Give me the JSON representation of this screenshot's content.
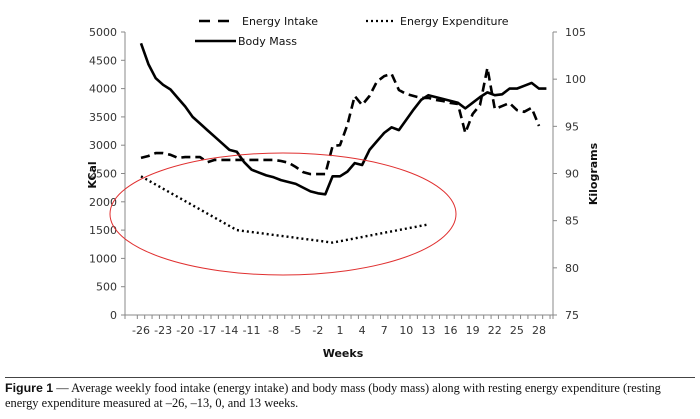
{
  "chart_data": {
    "type": "line",
    "title": "",
    "xlabel": "Weeks",
    "ylabel": "KCal",
    "y2label": "Kilograms",
    "ylim": [
      0,
      5000
    ],
    "y2lim": [
      75,
      105
    ],
    "yticks": [
      "0",
      "500",
      "1000",
      "1500",
      "2000",
      "2500",
      "3000",
      "3500",
      "4000",
      "4500",
      "5000"
    ],
    "y2ticks": [
      "75",
      "80",
      "85",
      "90",
      "95",
      "100",
      "105"
    ],
    "x": [
      -26,
      -25,
      -24,
      -23,
      -22,
      -21,
      -20,
      -19,
      -18,
      -17,
      -16,
      -15,
      -14,
      -13,
      -12,
      -11,
      -10,
      -9,
      -8,
      -7,
      -6,
      -5,
      -4,
      -3,
      -2,
      -1,
      0,
      1,
      2,
      3,
      4,
      5,
      6,
      7,
      8,
      9,
      10,
      11,
      12,
      13,
      14,
      15,
      16,
      17,
      18,
      19,
      20,
      21,
      22,
      23,
      24,
      25,
      26,
      27,
      28,
      29
    ],
    "xticks": [
      "-26",
      "-23",
      "-20",
      "-17",
      "-14",
      "-11",
      "-8",
      "-5",
      "-2",
      "1",
      "4",
      "7",
      "10",
      "13",
      "16",
      "19",
      "22",
      "25",
      "28"
    ],
    "grid": false,
    "legend_position": "top",
    "series": [
      {
        "name": "Energy Intake",
        "axis": "left",
        "style": "dashed",
        "x": [
          -26,
          -25,
          -24,
          -23,
          -22,
          -21,
          -20,
          -19,
          -18,
          -17,
          -16,
          -15,
          -14,
          -13,
          -12,
          -11,
          -10,
          -9,
          -8,
          -7,
          -6,
          -5,
          -4,
          -3,
          -2,
          -1,
          0,
          1,
          2,
          3,
          4,
          5,
          6,
          7,
          8,
          9,
          10,
          11,
          12,
          13,
          14,
          15,
          16,
          17,
          18,
          19,
          20,
          21,
          22,
          23,
          24,
          25,
          26,
          27,
          28
        ],
        "values": [
          2775,
          2810,
          2860,
          2860,
          2830,
          2775,
          2790,
          2790,
          2790,
          2700,
          2740,
          2740,
          2740,
          2740,
          2740,
          2740,
          2740,
          2740,
          2740,
          2720,
          2690,
          2615,
          2525,
          2490,
          2490,
          2490,
          2985,
          3000,
          3360,
          3870,
          3710,
          3870,
          4120,
          4220,
          4260,
          3975,
          3905,
          3870,
          3835,
          3835,
          3800,
          3780,
          3745,
          3730,
          3215,
          3550,
          3710,
          4365,
          3640,
          3690,
          3745,
          3620,
          3590,
          3660,
          3340
        ]
      },
      {
        "name": "Energy Expenditure",
        "axis": "left",
        "style": "dotted",
        "x": [
          -26,
          -13,
          0,
          13
        ],
        "values": [
          2450,
          1500,
          1280,
          1600
        ]
      },
      {
        "name": "Body Mass",
        "axis": "right",
        "style": "solid",
        "x": [
          -26,
          -25,
          -24,
          -23,
          -22,
          -21,
          -20,
          -19,
          -18,
          -17,
          -16,
          -15,
          -14,
          -13,
          -12,
          -11,
          -10,
          -9,
          -8,
          -7,
          -6,
          -5,
          -4,
          -3,
          -2,
          -1,
          0,
          1,
          2,
          3,
          4,
          5,
          6,
          7,
          8,
          9,
          10,
          11,
          12,
          13,
          14,
          15,
          16,
          17,
          18,
          19,
          20,
          21,
          22,
          23,
          24,
          25,
          26,
          27,
          28,
          29
        ],
        "values": [
          103.8,
          101.6,
          100.1,
          99.4,
          98.9,
          98.0,
          97.1,
          96.0,
          95.3,
          94.6,
          93.9,
          93.2,
          92.5,
          92.3,
          91.2,
          90.4,
          90.1,
          89.8,
          89.6,
          89.3,
          89.1,
          88.9,
          88.5,
          88.1,
          87.9,
          87.8,
          89.7,
          89.7,
          90.2,
          91.1,
          90.9,
          92.5,
          93.4,
          94.3,
          94.9,
          94.6,
          95.7,
          96.8,
          97.8,
          98.3,
          98.1,
          97.9,
          97.7,
          97.5,
          96.9,
          97.5,
          98.1,
          98.6,
          98.3,
          98.4,
          99.0,
          99.0,
          99.3,
          99.6,
          99.0,
          99.0
        ]
      }
    ],
    "annotations": [
      {
        "type": "ellipse",
        "color": "#e03030",
        "description": "hand-drawn red ellipse highlighting the Energy Expenditure curve"
      }
    ]
  },
  "caption": {
    "label": "Figure 1",
    "text": " — Average weekly food intake (energy intake) and body mass (body mass) along with resting energy expenditure (resting energy expenditure measured at –26, –13, 0, and 13 weeks."
  },
  "colors": {
    "line": "#000000",
    "annotation": "#e03030",
    "axis": "#888888"
  }
}
